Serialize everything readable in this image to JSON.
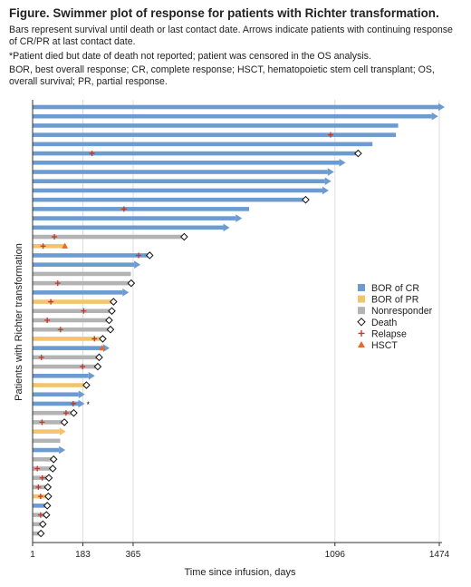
{
  "header": {
    "title": "Figure. Swimmer plot of response for patients with Richter transformation.",
    "description": "Bars represent survival until death or last contact date. Arrows indicate patients with continuing response of CR/PR at last contact date.",
    "footnote": "*Patient died but date of death not reported; patient was censored in the OS analysis.",
    "abbreviations": "BOR, best overall response; CR, complete response; HSCT, hematopoietic stem cell transplant; OS, overall survival; PR, partial response."
  },
  "colors": {
    "CR": "#6b9bd1",
    "PR": "#f2c46e",
    "NR": "#b3b3b3",
    "relapse": "#c0392b",
    "hsct": "#e8692a"
  },
  "chart_data": {
    "type": "bar",
    "orientation": "horizontal",
    "xlabel": "Time since infusion, days",
    "ylabel": "Patients with Richter transformation",
    "xticks": [
      1,
      183,
      365,
      1096,
      1474
    ],
    "xlim": [
      1,
      1474
    ],
    "gridlines": true,
    "legend_position": "right",
    "legend": [
      {
        "label": "BOR of CR",
        "marker": "square",
        "color": "#6b9bd1"
      },
      {
        "label": "BOR of PR",
        "marker": "square",
        "color": "#f2c46e"
      },
      {
        "label": "Nonresponder",
        "marker": "square",
        "color": "#b3b3b3"
      },
      {
        "label": "Death",
        "marker": "diamond",
        "color": "#000000"
      },
      {
        "label": "Relapse",
        "marker": "plus",
        "color": "#c0392b"
      },
      {
        "label": "HSCT",
        "marker": "triangle",
        "color": "#e8692a"
      }
    ],
    "patients": [
      {
        "bor": "CR",
        "end": 1474,
        "arrow": true
      },
      {
        "bor": "CR",
        "end": 1450,
        "arrow": true
      },
      {
        "bor": "CR",
        "end": 1325
      },
      {
        "bor": "CR",
        "end": 1317,
        "relapse": [
          1080
        ]
      },
      {
        "bor": "CR",
        "end": 1232
      },
      {
        "bor": "CR",
        "end": 1180,
        "death": true,
        "relapse": [
          216
        ]
      },
      {
        "bor": "CR",
        "end": 1115,
        "arrow": true
      },
      {
        "bor": "CR",
        "end": 1073,
        "arrow": true
      },
      {
        "bor": "CR",
        "end": 1063,
        "arrow": true
      },
      {
        "bor": "CR",
        "end": 1054,
        "arrow": true
      },
      {
        "bor": "CR",
        "end": 990,
        "death": true
      },
      {
        "bor": "CR",
        "end": 785,
        "relapse": [
          332
        ]
      },
      {
        "bor": "CR",
        "end": 740,
        "arrow": true
      },
      {
        "bor": "CR",
        "end": 695,
        "arrow": true
      },
      {
        "bor": "NR",
        "end": 550,
        "death": true,
        "relapse": [
          80
        ]
      },
      {
        "bor": "PR",
        "end": 120,
        "relapse": [
          39
        ],
        "hsct": [
          118
        ]
      },
      {
        "bor": "CR",
        "end": 425,
        "death": true,
        "relapse": [
          385
        ]
      },
      {
        "bor": "CR",
        "end": 372,
        "arrow": true
      },
      {
        "bor": "NR",
        "end": 357
      },
      {
        "bor": "NR",
        "end": 358,
        "death": true,
        "relapse": [
          92
        ]
      },
      {
        "bor": "CR",
        "end": 330,
        "arrow": true
      },
      {
        "bor": "PR",
        "end": 294,
        "death": true,
        "relapse": [
          67
        ]
      },
      {
        "bor": "NR",
        "end": 288,
        "death": true,
        "relapse": [
          186
        ]
      },
      {
        "bor": "NR",
        "end": 278,
        "death": true,
        "relapse": [
          54
        ]
      },
      {
        "bor": "NR",
        "end": 283,
        "death": true,
        "relapse": [
          102
        ]
      },
      {
        "bor": "PR",
        "end": 255,
        "death": true,
        "relapse": [
          225
        ]
      },
      {
        "bor": "CR",
        "end": 260,
        "arrow": true,
        "hsct": [
          253
        ]
      },
      {
        "bor": "NR",
        "end": 242,
        "death": true,
        "relapse": [
          33
        ]
      },
      {
        "bor": "NR",
        "end": 237,
        "death": true,
        "relapse": [
          182
        ]
      },
      {
        "bor": "CR",
        "end": 207,
        "arrow": true
      },
      {
        "bor": "PR",
        "end": 196,
        "death": true
      },
      {
        "bor": "CR",
        "end": 171,
        "arrow": true
      },
      {
        "bor": "CR",
        "end": 170,
        "arrow": true,
        "relapse": [
          148
        ],
        "asterisk": true
      },
      {
        "bor": "NR",
        "end": 150,
        "death": true,
        "relapse": [
          122
        ]
      },
      {
        "bor": "NR",
        "end": 116,
        "death": true,
        "relapse": [
          35
        ]
      },
      {
        "bor": "PR",
        "end": 102,
        "arrow": true
      },
      {
        "bor": "NR",
        "end": 101
      },
      {
        "bor": "CR",
        "end": 100,
        "arrow": true
      },
      {
        "bor": "NR",
        "end": 77,
        "death": true
      },
      {
        "bor": "NR",
        "end": 74,
        "death": true,
        "relapse": [
          18
        ]
      },
      {
        "bor": "NR",
        "end": 60,
        "death": true,
        "relapse": [
          36
        ]
      },
      {
        "bor": "NR",
        "end": 56,
        "death": true,
        "relapse": [
          22
        ]
      },
      {
        "bor": "PR",
        "end": 58,
        "death": true,
        "relapse": [
          30
        ]
      },
      {
        "bor": "CR",
        "end": 54,
        "death": true
      },
      {
        "bor": "NR",
        "end": 51,
        "death": true,
        "relapse": [
          30
        ]
      },
      {
        "bor": "NR",
        "end": 38,
        "death": true
      },
      {
        "bor": "NR",
        "end": 31,
        "death": true
      }
    ]
  }
}
